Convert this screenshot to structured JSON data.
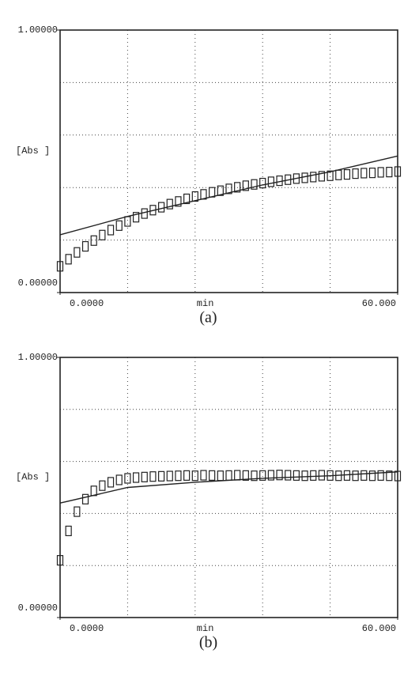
{
  "chart_data": [
    {
      "type": "line",
      "caption": "(a)",
      "xlabel": "min",
      "ylabel": "[Abs ]",
      "xlim": [
        0,
        60
      ],
      "ylim": [
        0,
        1
      ],
      "xticks": [
        {
          "value": 0,
          "label": "0.0000"
        },
        {
          "value": 60,
          "label": "60.000"
        }
      ],
      "yticks": [
        {
          "value": 0,
          "label": "0.00000"
        },
        {
          "value": 1,
          "label": "1.00000"
        }
      ],
      "xgrid": [
        12,
        24,
        36,
        48
      ],
      "ygrid": [
        0.2,
        0.4,
        0.6,
        0.8
      ],
      "series": [
        {
          "marker": "square",
          "color": "#222",
          "x": [
            0,
            1.5,
            3,
            4.5,
            6,
            7.5,
            9,
            10.5,
            12,
            13.5,
            15,
            16.5,
            18,
            19.5,
            21,
            22.5,
            24,
            25.5,
            27,
            28.5,
            30,
            31.5,
            33,
            34.5,
            36,
            37.5,
            39,
            40.5,
            42,
            43.5,
            45,
            46.5,
            48,
            49.5,
            51,
            52.5,
            54,
            55.5,
            57,
            58.5,
            60
          ],
          "values": [
            0.1,
            0.127,
            0.153,
            0.176,
            0.198,
            0.219,
            0.238,
            0.255,
            0.271,
            0.287,
            0.301,
            0.314,
            0.325,
            0.337,
            0.347,
            0.357,
            0.366,
            0.374,
            0.382,
            0.388,
            0.395,
            0.401,
            0.407,
            0.412,
            0.417,
            0.422,
            0.426,
            0.43,
            0.434,
            0.437,
            0.44,
            0.443,
            0.445,
            0.448,
            0.45,
            0.453,
            0.455,
            0.456,
            0.458,
            0.459,
            0.461
          ]
        },
        {
          "marker": "none",
          "color": "#222",
          "x": [
            0,
            12,
            24,
            36,
            48,
            60
          ],
          "values": [
            0.22,
            0.29,
            0.35,
            0.41,
            0.46,
            0.52
          ]
        }
      ]
    },
    {
      "type": "line",
      "caption": "(b)",
      "xlabel": "min",
      "ylabel": "[Abs ]",
      "xlim": [
        0,
        60
      ],
      "ylim": [
        0,
        1
      ],
      "xticks": [
        {
          "value": 0,
          "label": "0.0000"
        },
        {
          "value": 60,
          "label": "60.000"
        }
      ],
      "yticks": [
        {
          "value": 0,
          "label": "0.00000"
        },
        {
          "value": 1,
          "label": "1.00000"
        }
      ],
      "xgrid": [
        12,
        24,
        36,
        48
      ],
      "ygrid": [
        0.2,
        0.4,
        0.6,
        0.8
      ],
      "series": [
        {
          "marker": "square",
          "color": "#222",
          "x": [
            0,
            1.5,
            3,
            4.5,
            6,
            7.5,
            9,
            10.5,
            12,
            13.5,
            15,
            16.5,
            18,
            19.5,
            21,
            22.5,
            24,
            25.5,
            27,
            28.5,
            30,
            31.5,
            33,
            34.5,
            36,
            37.5,
            39,
            40.5,
            42,
            43.5,
            45,
            46.5,
            48,
            49.5,
            51,
            52.5,
            54,
            55.5,
            57,
            58.5,
            60
          ],
          "values": [
            0.22,
            0.333,
            0.407,
            0.455,
            0.487,
            0.507,
            0.52,
            0.529,
            0.535,
            0.538,
            0.54,
            0.542,
            0.543,
            0.544,
            0.545,
            0.546,
            0.545,
            0.547,
            0.546,
            0.545,
            0.546,
            0.547,
            0.546,
            0.545,
            0.546,
            0.547,
            0.548,
            0.547,
            0.546,
            0.545,
            0.546,
            0.547,
            0.546,
            0.545,
            0.546,
            0.545,
            0.546,
            0.545,
            0.546,
            0.545,
            0.544
          ]
        },
        {
          "marker": "none",
          "color": "#222",
          "x": [
            0,
            12,
            24,
            36,
            48,
            60
          ],
          "values": [
            0.44,
            0.5,
            0.52,
            0.535,
            0.545,
            0.56
          ]
        }
      ]
    }
  ]
}
